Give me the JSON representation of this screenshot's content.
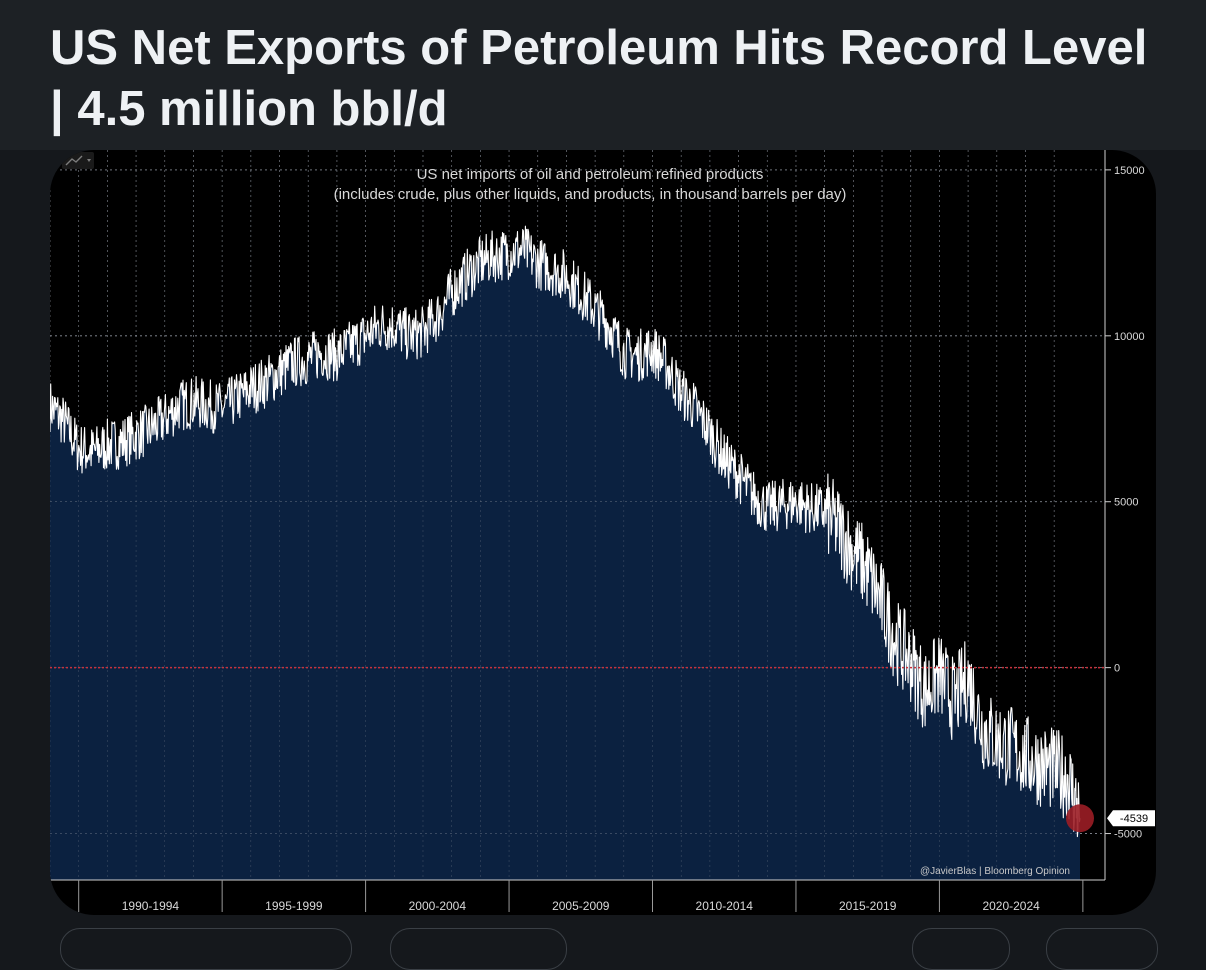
{
  "post": {
    "title": "US Net Exports of Petroleum Hits Record Level | 4.5 million bbl/d"
  },
  "chart_data": {
    "type": "area",
    "title": "US net imports of oil and petroleum refined products",
    "subtitle": "(includes crude, plus other liquids, and products, in thousand barrels per day)",
    "xlabel": "",
    "ylabel": "",
    "x_range": [
      1989.0,
      2024.9
    ],
    "ylim": [
      -6400,
      15600
    ],
    "y_ticks": [
      15000,
      10000,
      5000,
      0,
      -5000
    ],
    "y_tick_labels": [
      "15000",
      "10000",
      "5000",
      "0",
      "-5000"
    ],
    "x_periods": [
      "1990-1994",
      "1995-1999",
      "2000-2004",
      "2005-2009",
      "2010-2014",
      "2015-2019",
      "2020-2024"
    ],
    "x_period_bounds": [
      1990,
      1995,
      2000,
      2005,
      2010,
      2015,
      2020,
      2025
    ],
    "series": [
      {
        "x": [
          1989.0,
          1989.5,
          1990.0,
          1990.5,
          1991.0,
          1991.5,
          1992.0,
          1992.5,
          1993.0,
          1993.5,
          1994.0,
          1994.5,
          1995.0,
          1995.5,
          1996.0,
          1996.5,
          1997.0,
          1997.5,
          1998.0,
          1998.5,
          1999.0,
          1999.5,
          2000.0,
          2000.5,
          2001.0,
          2001.5,
          2002.0,
          2002.5,
          2003.0,
          2003.5,
          2004.0,
          2004.5,
          2005.0,
          2005.5,
          2006.0,
          2006.5,
          2007.0,
          2007.5,
          2008.0,
          2008.5,
          2009.0,
          2009.5,
          2010.0,
          2010.5,
          2011.0,
          2011.5,
          2012.0,
          2012.5,
          2013.0,
          2013.5,
          2014.0,
          2014.5,
          2015.0,
          2015.5,
          2016.0,
          2016.5,
          2017.0,
          2017.5,
          2018.0,
          2018.5,
          2019.0,
          2019.5,
          2020.0,
          2020.5,
          2021.0,
          2021.5,
          2022.0,
          2022.5,
          2023.0,
          2023.5,
          2024.0,
          2024.5,
          2024.9
        ],
        "values": [
          7900,
          7400,
          6600,
          6500,
          6700,
          6800,
          7000,
          7200,
          7500,
          7900,
          8000,
          7900,
          7800,
          8100,
          8400,
          8600,
          8900,
          9200,
          9300,
          9500,
          9400,
          9700,
          10000,
          10300,
          10300,
          10000,
          10100,
          10600,
          11300,
          11800,
          12200,
          12400,
          12500,
          12600,
          12200,
          12000,
          11800,
          11300,
          10800,
          10300,
          9500,
          9400,
          9600,
          9100,
          8300,
          7800,
          7100,
          6300,
          5800,
          5200,
          4800,
          4900,
          5000,
          4800,
          4700,
          4200,
          3500,
          2900,
          1900,
          800,
          200,
          -700,
          -200,
          -1000,
          -300,
          -1800,
          -2200,
          -2400,
          -2700,
          -2900,
          -3100,
          -3300,
          -4539
        ]
      }
    ],
    "last_value_label": "-4539",
    "zero_line": true,
    "grid": true,
    "annotation": "@JavierBlas | Bloomberg Opinion",
    "colors": {
      "background": "#000000",
      "area_fill": "#0b2140",
      "line": "#ffffff",
      "zero_line": "#c8323c",
      "grid": "#8a8f99",
      "marker": "#9b1d25",
      "text": "#d8d8d8"
    }
  }
}
